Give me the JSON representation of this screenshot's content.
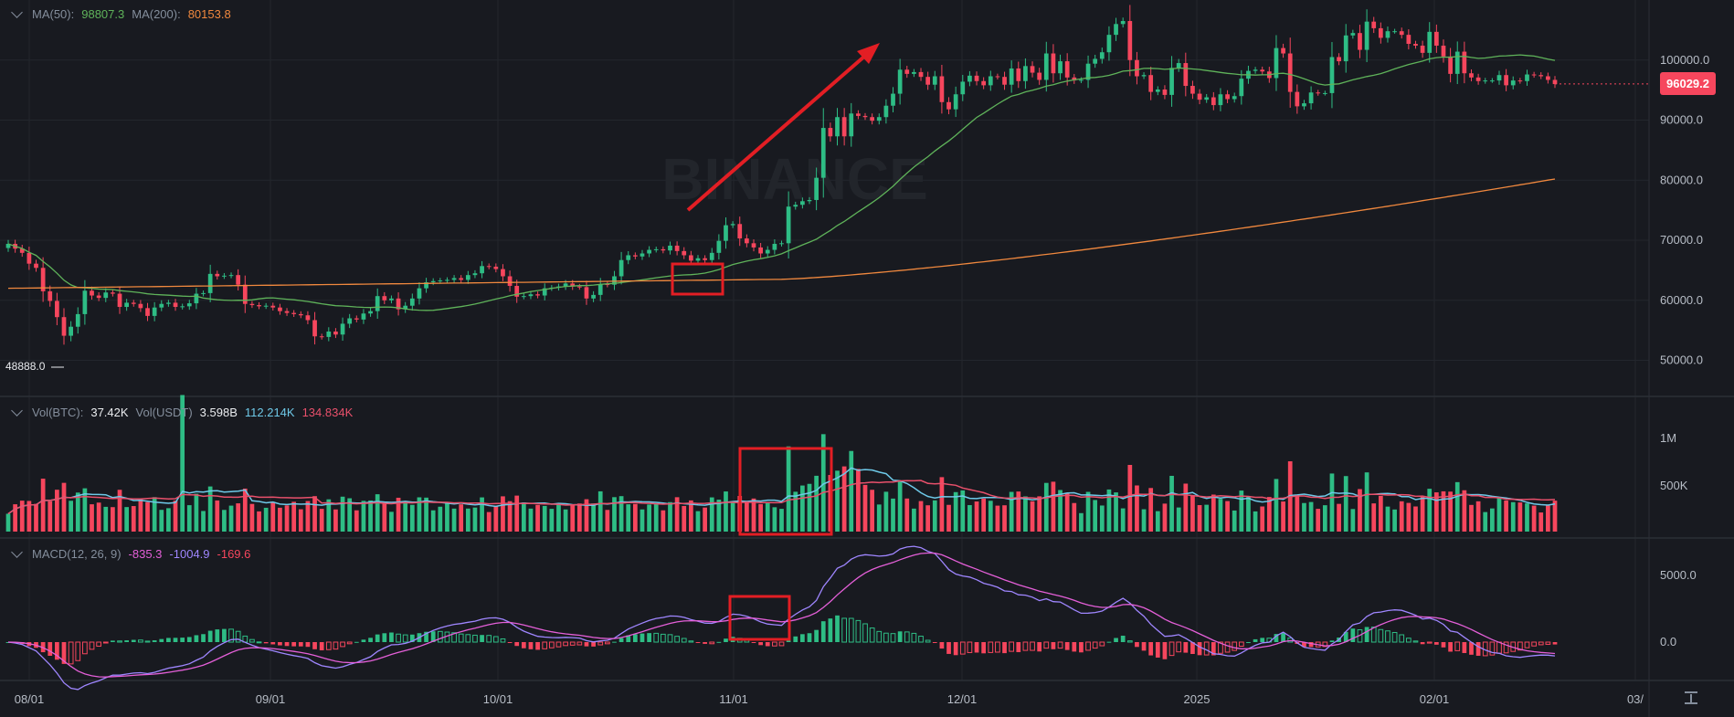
{
  "legends": {
    "ma": {
      "ma50_label": "MA(50):",
      "ma50_value": "98807.3",
      "ma200_label": "MA(200):",
      "ma200_value": "80153.8"
    },
    "vol": {
      "label1": "Vol(BTC):",
      "value1": "37.42K",
      "label2": "Vol(USDT)",
      "value2": "3.598B",
      "value3": "112.214K",
      "value4": "134.834K"
    },
    "macd": {
      "label": "MACD(12, 26, 9)",
      "value1": "-835.3",
      "value2": "-1004.9",
      "value3": "-169.6"
    }
  },
  "current_price": "96029.2",
  "low_marker": "48888.0",
  "watermark": "BINANCE",
  "colors": {
    "up": "#2ebd85",
    "down": "#f6465d",
    "ma50": "#5fb35a",
    "ma200": "#f0883e",
    "vol_ma1": "#6ec9e8",
    "vol_ma2": "#e8506b",
    "macd_dif": "#e45fd8",
    "macd_dea": "#9f86ff",
    "annotation": "#e31e24",
    "grid": "#23262d",
    "bg": "#181a20"
  },
  "chart_data": {
    "type": "candlestick",
    "x_ticks": [
      "08/01",
      "09/01",
      "10/01",
      "11/01",
      "12/01",
      "2025",
      "02/01",
      "03/"
    ],
    "price_ticks": [
      "50000.0",
      "60000.0",
      "70000.0",
      "80000.0",
      "90000.0",
      "100000.0"
    ],
    "volume_ticks": [
      "500K",
      "1M"
    ],
    "macd_ticks": [
      "0.0",
      "5000.0"
    ],
    "price_ylim": [
      44000,
      110000
    ],
    "candles_close": [
      69400,
      68600,
      67900,
      66100,
      65400,
      61500,
      59900,
      57200,
      54100,
      55600,
      57700,
      61600,
      60800,
      60400,
      61300,
      61100,
      58900,
      59600,
      59400,
      58700,
      57400,
      58800,
      59400,
      59600,
      58900,
      59000,
      59500,
      61100,
      61200,
      64400,
      64000,
      64100,
      64200,
      62600,
      59400,
      59200,
      59000,
      59100,
      58800,
      58200,
      57900,
      57700,
      57500,
      56700,
      54000,
      53900,
      54800,
      54300,
      56100,
      57000,
      56800,
      57800,
      58200,
      60700,
      60000,
      60300,
      58500,
      59100,
      60300,
      62000,
      63000,
      63200,
      63300,
      63400,
      63700,
      63400,
      64200,
      64500,
      65700,
      65600,
      65200,
      64000,
      62400,
      60600,
      60700,
      61000,
      60800,
      62000,
      62100,
      62300,
      62800,
      62300,
      62200,
      60300,
      60900,
      62700,
      62600,
      64000,
      66700,
      67500,
      67300,
      67800,
      68400,
      68500,
      68300,
      69100,
      68200,
      67500,
      66600,
      67000,
      66700,
      67900,
      69900,
      72500,
      72700,
      70300,
      69500,
      68800,
      67800,
      68400,
      69400,
      69500,
      75600,
      75900,
      76500,
      76700,
      80400,
      88700,
      87300,
      90500,
      87300,
      91100,
      90700,
      90500,
      89900,
      90500,
      92400,
      94400,
      98400,
      97700,
      98000,
      97200,
      95900,
      97300,
      93000,
      91800,
      94300,
      96400,
      97400,
      96500,
      95800,
      97300,
      97200,
      95900,
      98600,
      96500,
      99000,
      97900,
      96700,
      101100,
      97800,
      99800,
      97100,
      96600,
      96700,
      99400,
      100200,
      101300,
      104200,
      106000,
      106500,
      100000,
      97300,
      97500,
      94700,
      95100,
      94200,
      98700,
      99500,
      95700,
      94400,
      93400,
      93800,
      92500,
      94300,
      93500,
      94000,
      96900,
      98200,
      98400,
      98100,
      97000,
      102000,
      101100,
      94700,
      92300,
      92800,
      94600,
      94500,
      94500,
      100500,
      99800,
      104100,
      104500,
      101700,
      106400,
      105300,
      103700,
      104800,
      104800,
      104200,
      102700,
      102400,
      101200,
      104700,
      102400,
      100600,
      97700,
      101400,
      97800,
      97100,
      96500,
      96600,
      96600,
      97500,
      95800,
      96600,
      96500,
      97600,
      97500,
      97300,
      96700,
      96000
    ],
    "ma50_tail": "98807.3",
    "ma200_tail": "80153.8",
    "macd": {
      "dif_last": -835.3,
      "dea_last": -1004.9,
      "hist_last": -169.6
    }
  }
}
